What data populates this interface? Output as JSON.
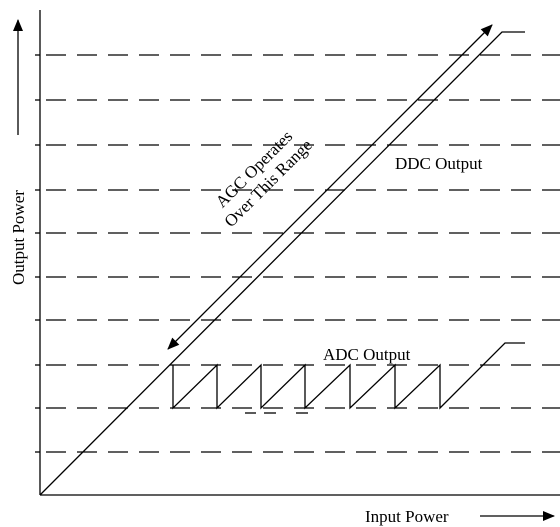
{
  "axes": {
    "y_label": "Output Power",
    "x_label": "Input Power"
  },
  "annotations": {
    "range_line1": "AGC Operates",
    "range_line2": "Over This Range",
    "ddc": "DDC Output",
    "adc": "ADC Output"
  }
}
